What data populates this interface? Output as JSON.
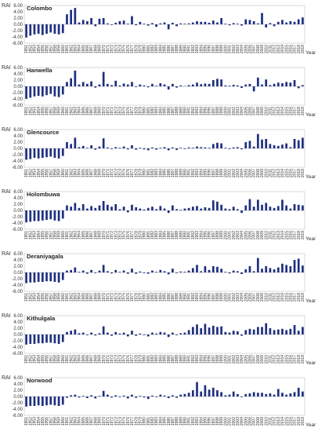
{
  "chart_data": [
    {
      "type": "bar",
      "title": "Colombo",
      "ylabel": "RAI",
      "xlabel": "Year",
      "ylim": [
        -6,
        6
      ],
      "yticks": [
        "6.00",
        "4.00",
        "2.00",
        "0.00",
        "-2.00",
        "-4.00",
        "-6.00"
      ],
      "categories": [
        "1951",
        "1952",
        "1953",
        "1954",
        "1955",
        "1956",
        "1957",
        "1958",
        "1959",
        "1960",
        "1961",
        "1962",
        "1963",
        "1964",
        "1965",
        "1966",
        "1967",
        "1968",
        "1969",
        "1970",
        "1971",
        "1972",
        "1973",
        "1974",
        "1975",
        "1976",
        "1977",
        "1978",
        "1979",
        "1980",
        "1981",
        "1982",
        "1983",
        "1984",
        "1985",
        "1986",
        "1987",
        "1988",
        "1989",
        "1990",
        "1991",
        "1992",
        "1993",
        "1994",
        "1995",
        "1996",
        "1997",
        "1998",
        "1999",
        "2000",
        "2001",
        "2002",
        "2003",
        "2004",
        "2005",
        "2006",
        "2007",
        "2008",
        "2009",
        "2010",
        "2011",
        "2012",
        "2013",
        "2014",
        "2015",
        "2016",
        "2017",
        "2018",
        "2019"
      ],
      "series": [
        {
          "values": [
            -4.2,
            -3.6,
            -3.2,
            -3.0,
            -3.4,
            -3.0,
            -2.6,
            -3.0,
            -3.2,
            -2.8,
            3.2,
            4.6,
            5.2,
            0.6,
            1.4,
            1.0,
            2.0,
            -0.6,
            1.8,
            2.0,
            0.3,
            -0.2,
            0.5,
            1.0,
            1.2,
            0.2,
            2.6,
            -0.3,
            0.8,
            0.2,
            -0.4,
            0.4,
            -0.8,
            0.3,
            0.6,
            -1.6,
            0.5,
            -0.6,
            0.3,
            0.2,
            0.3,
            0.6,
            1.0,
            0.8,
            0.8,
            0.5,
            1.2,
            0.6,
            2.0,
            0.2,
            -0.3,
            0.4,
            0.2,
            -0.4,
            1.6,
            1.4,
            1.0,
            0.3,
            3.6,
            -1.0,
            0.4,
            -0.6,
            0.8,
            1.4,
            0.6,
            1.0,
            0.8,
            1.6,
            2.2
          ]
        }
      ]
    },
    {
      "type": "bar",
      "title": "Hanwella",
      "ylabel": "RAI",
      "xlabel": "Year",
      "ylim": [
        -6,
        6
      ],
      "yticks": [
        "6.00",
        "4.00",
        "2.00",
        "0.00",
        "-2.00",
        "-4.00",
        "-6.00"
      ],
      "categories": [
        "1951",
        "1952",
        "1953",
        "1954",
        "1955",
        "1956",
        "1957",
        "1958",
        "1959",
        "1960",
        "1961",
        "1962",
        "1963",
        "1964",
        "1965",
        "1966",
        "1967",
        "1968",
        "1969",
        "1970",
        "1971",
        "1972",
        "1973",
        "1974",
        "1975",
        "1976",
        "1977",
        "1978",
        "1979",
        "1980",
        "1981",
        "1982",
        "1983",
        "1984",
        "1985",
        "1986",
        "1987",
        "1988",
        "1989",
        "1990",
        "1991",
        "1992",
        "1993",
        "1994",
        "1995",
        "1996",
        "1997",
        "1998",
        "1999",
        "2000",
        "2001",
        "2002",
        "2003",
        "2004",
        "2005",
        "2006",
        "2007",
        "2008",
        "2009",
        "2010",
        "2011",
        "2012",
        "2013",
        "2014",
        "2015",
        "2016",
        "2017",
        "2018",
        "2019"
      ],
      "series": [
        {
          "values": [
            -4.0,
            -3.6,
            -3.2,
            -3.0,
            -3.2,
            -2.8,
            -2.4,
            -3.2,
            -3.4,
            -2.6,
            1.4,
            2.6,
            5.0,
            0.6,
            1.4,
            0.8,
            1.6,
            -0.4,
            0.6,
            4.6,
            0.8,
            0.4,
            1.8,
            0.3,
            0.9,
            0.6,
            1.4,
            -0.2,
            0.6,
            0.3,
            -0.3,
            0.8,
            0.2,
            1.0,
            0.6,
            -1.0,
            0.8,
            -0.4,
            0.3,
            0.1,
            0.4,
            0.6,
            1.2,
            0.7,
            0.9,
            0.8,
            2.0,
            2.4,
            2.2,
            0.3,
            0.2,
            0.5,
            0.3,
            -0.5,
            0.6,
            0.8,
            -1.6,
            2.8,
            0.6,
            2.2,
            0.4,
            0.8,
            1.2,
            1.0,
            1.4,
            1.2,
            2.0,
            -0.6,
            0.4
          ]
        }
      ]
    },
    {
      "type": "bar",
      "title": "Glencource",
      "ylabel": "RAI",
      "xlabel": "Year",
      "ylim": [
        -6,
        6
      ],
      "yticks": [
        "6.00",
        "4.00",
        "2.00",
        "0.00",
        "-2.00",
        "-4.00",
        "-6.00"
      ],
      "categories": [
        "1951",
        "1952",
        "1953",
        "1954",
        "1955",
        "1956",
        "1957",
        "1958",
        "1959",
        "1960",
        "1961",
        "1962",
        "1963",
        "1964",
        "1965",
        "1966",
        "1967",
        "1968",
        "1969",
        "1970",
        "1971",
        "1972",
        "1973",
        "1974",
        "1975",
        "1976",
        "1977",
        "1978",
        "1979",
        "1980",
        "1981",
        "1982",
        "1983",
        "1984",
        "1985",
        "1986",
        "1987",
        "1988",
        "1989",
        "1990",
        "1991",
        "1992",
        "1993",
        "1994",
        "1995",
        "1996",
        "1997",
        "1998",
        "1999",
        "2000",
        "2001",
        "2002",
        "2003",
        "2004",
        "2005",
        "2006",
        "2007",
        "2008",
        "2009",
        "2010",
        "2011",
        "2012",
        "2013",
        "2014",
        "2015",
        "2016",
        "2017",
        "2018",
        "2019"
      ],
      "series": [
        {
          "values": [
            -3.6,
            -3.4,
            -3.0,
            -3.2,
            -3.0,
            -2.8,
            -2.6,
            -3.0,
            -3.2,
            -2.4,
            2.0,
            1.4,
            3.4,
            0.4,
            0.8,
            0.2,
            1.0,
            -0.4,
            0.6,
            3.2,
            0.3,
            -0.2,
            0.4,
            0.2,
            0.6,
            -0.3,
            1.0,
            -0.4,
            0.2,
            -0.3,
            -0.6,
            0.3,
            -0.4,
            0.2,
            0.4,
            -0.6,
            0.3,
            -0.5,
            0.2,
            -0.2,
            0.3,
            0.2,
            0.6,
            0.4,
            0.3,
            0.2,
            1.4,
            1.8,
            1.6,
            0.2,
            -0.2,
            0.3,
            0.4,
            -0.3,
            2.0,
            2.4,
            0.6,
            4.6,
            2.8,
            3.0,
            1.4,
            1.0,
            0.8,
            1.2,
            1.6,
            0.4,
            3.0,
            2.6,
            3.4
          ]
        }
      ]
    },
    {
      "type": "bar",
      "title": "Holombuwa",
      "ylabel": "RAI",
      "xlabel": "Year",
      "ylim": [
        -6,
        6
      ],
      "yticks": [
        "6.00",
        "4.00",
        "2.00",
        "0.00",
        "-2.00",
        "-4.00",
        "-6.00"
      ],
      "categories": [
        "1951",
        "1952",
        "1953",
        "1954",
        "1955",
        "1956",
        "1957",
        "1958",
        "1959",
        "1960",
        "1961",
        "1962",
        "1963",
        "1964",
        "1965",
        "1966",
        "1967",
        "1968",
        "1969",
        "1970",
        "1971",
        "1972",
        "1973",
        "1974",
        "1975",
        "1976",
        "1977",
        "1978",
        "1979",
        "1980",
        "1981",
        "1982",
        "1983",
        "1984",
        "1985",
        "1986",
        "1987",
        "1988",
        "1989",
        "1990",
        "1991",
        "1992",
        "1993",
        "1994",
        "1995",
        "1996",
        "1997",
        "1998",
        "1999",
        "2000",
        "2001",
        "2002",
        "2003",
        "2004",
        "2005",
        "2006",
        "2007",
        "2008",
        "2009",
        "2010",
        "2011",
        "2012",
        "2013",
        "2014",
        "2015",
        "2016",
        "2017",
        "2018",
        "2019"
      ],
      "series": [
        {
          "values": [
            -3.8,
            -3.6,
            -3.4,
            -3.4,
            -3.2,
            -3.0,
            -2.8,
            -3.2,
            -3.4,
            -2.6,
            1.6,
            1.2,
            2.4,
            0.8,
            2.0,
            0.6,
            1.4,
            0.8,
            1.6,
            3.0,
            1.8,
            1.2,
            2.0,
            0.4,
            1.2,
            -0.6,
            1.8,
            1.0,
            0.6,
            0.3,
            0.8,
            1.2,
            0.4,
            1.4,
            0.6,
            -0.8,
            1.6,
            0.4,
            0.2,
            0.6,
            0.8,
            1.2,
            1.4,
            0.6,
            1.0,
            0.8,
            3.2,
            2.8,
            1.8,
            0.6,
            0.4,
            1.2,
            0.4,
            -0.8,
            1.6,
            3.6,
            1.2,
            3.4,
            1.8,
            2.4,
            1.2,
            0.8,
            1.4,
            3.4,
            1.6,
            0.6,
            2.0,
            1.8,
            1.6
          ]
        }
      ]
    },
    {
      "type": "bar",
      "title": "Deraniyagala",
      "ylabel": "RAI",
      "xlabel": "Year",
      "ylim": [
        -6,
        6
      ],
      "yticks": [
        "6.00",
        "4.00",
        "2.00",
        "0.00",
        "-2.00",
        "-4.00",
        "-6.00"
      ],
      "categories": [
        "1951",
        "1952",
        "1953",
        "1954",
        "1955",
        "1956",
        "1957",
        "1958",
        "1959",
        "1960",
        "1961",
        "1962",
        "1963",
        "1964",
        "1965",
        "1966",
        "1967",
        "1968",
        "1969",
        "1970",
        "1971",
        "1972",
        "1973",
        "1974",
        "1975",
        "1976",
        "1977",
        "1978",
        "1979",
        "1980",
        "1981",
        "1982",
        "1983",
        "1984",
        "1985",
        "1986",
        "1987",
        "1988",
        "1989",
        "1990",
        "1991",
        "1992",
        "1993",
        "1994",
        "1995",
        "1996",
        "1997",
        "1998",
        "1999",
        "2000",
        "2001",
        "2002",
        "2003",
        "2004",
        "2005",
        "2006",
        "2007",
        "2008",
        "2009",
        "2010",
        "2011",
        "2012",
        "2013",
        "2014",
        "2015",
        "2016",
        "2017",
        "2018",
        "2019"
      ],
      "series": [
        {
          "values": [
            -3.4,
            -3.2,
            -3.2,
            -3.0,
            -3.0,
            -2.8,
            -2.8,
            -3.0,
            -3.2,
            -2.4,
            0.6,
            0.8,
            1.6,
            0.2,
            0.6,
            -0.4,
            0.8,
            -0.2,
            0.6,
            2.4,
            0.4,
            -0.3,
            0.8,
            0.2,
            0.6,
            -0.4,
            1.2,
            -0.4,
            0.3,
            -0.2,
            -0.4,
            0.6,
            0.2,
            0.8,
            0.4,
            -0.6,
            1.2,
            -0.2,
            0.3,
            0.2,
            0.6,
            1.4,
            2.4,
            0.4,
            2.0,
            0.8,
            2.0,
            1.8,
            1.2,
            0.2,
            -0.3,
            0.6,
            0.4,
            -0.5,
            1.0,
            2.0,
            0.4,
            4.6,
            1.2,
            2.0,
            1.4,
            1.0,
            1.6,
            2.8,
            2.4,
            2.0,
            4.0,
            4.4,
            2.2
          ]
        }
      ]
    },
    {
      "type": "bar",
      "title": "Kithulgala",
      "ylabel": "RAI",
      "xlabel": "Year",
      "ylim": [
        -6,
        6
      ],
      "yticks": [
        "6.00",
        "4.00",
        "2.00",
        "0.00",
        "-2.00",
        "-4.00",
        "-6.00"
      ],
      "categories": [
        "1951",
        "1952",
        "1953",
        "1954",
        "1955",
        "1956",
        "1957",
        "1958",
        "1959",
        "1960",
        "1961",
        "1962",
        "1963",
        "1964",
        "1965",
        "1966",
        "1967",
        "1968",
        "1969",
        "1970",
        "1971",
        "1972",
        "1973",
        "1974",
        "1975",
        "1976",
        "1977",
        "1978",
        "1979",
        "1980",
        "1981",
        "1982",
        "1983",
        "1984",
        "1985",
        "1986",
        "1987",
        "1988",
        "1989",
        "1990",
        "1991",
        "1992",
        "1993",
        "1994",
        "1995",
        "1996",
        "1997",
        "1998",
        "1999",
        "2000",
        "2001",
        "2002",
        "2003",
        "2004",
        "2005",
        "2006",
        "2007",
        "2008",
        "2009",
        "2010",
        "2011",
        "2012",
        "2013",
        "2014",
        "2015",
        "2016",
        "2017",
        "2018",
        "2019"
      ],
      "series": [
        {
          "values": [
            -3.2,
            -3.0,
            -3.0,
            -2.8,
            -2.8,
            -2.6,
            -2.6,
            -2.8,
            -3.0,
            -2.4,
            0.8,
            1.2,
            1.6,
            0.4,
            0.6,
            -0.2,
            0.6,
            -0.3,
            0.4,
            2.6,
            0.6,
            -0.4,
            0.8,
            0.3,
            0.6,
            -0.6,
            1.2,
            -0.4,
            0.3,
            -0.2,
            -0.6,
            0.6,
            0.3,
            0.8,
            0.6,
            -0.8,
            0.6,
            -0.2,
            0.4,
            0.6,
            1.4,
            2.4,
            3.2,
            2.0,
            3.4,
            2.2,
            2.8,
            2.4,
            2.6,
            0.8,
            0.6,
            1.2,
            1.0,
            -0.4,
            1.4,
            1.8,
            1.6,
            2.4,
            2.4,
            3.6,
            2.0,
            1.4,
            1.6,
            1.8,
            1.4,
            1.8,
            3.0,
            1.2,
            2.4
          ]
        }
      ]
    },
    {
      "type": "bar",
      "title": "Norwood",
      "ylabel": "RAI",
      "xlabel": "Year",
      "ylim": [
        -6,
        6
      ],
      "yticks": [
        "6.00",
        "4.00",
        "2.00",
        "0.00",
        "-2.00",
        "-4.00",
        "-6.00"
      ],
      "categories": [
        "1951",
        "1952",
        "1953",
        "1954",
        "1955",
        "1956",
        "1957",
        "1958",
        "1959",
        "1960",
        "1961",
        "1962",
        "1963",
        "1964",
        "1965",
        "1966",
        "1967",
        "1968",
        "1969",
        "1970",
        "1971",
        "1972",
        "1973",
        "1974",
        "1975",
        "1976",
        "1977",
        "1978",
        "1979",
        "1980",
        "1981",
        "1982",
        "1983",
        "1984",
        "1985",
        "1986",
        "1987",
        "1988",
        "1989",
        "1990",
        "1991",
        "1992",
        "1993",
        "1994",
        "1995",
        "1996",
        "1997",
        "1998",
        "1999",
        "2000",
        "2001",
        "2002",
        "2003",
        "2004",
        "2005",
        "2006",
        "2007",
        "2008",
        "2009",
        "2010",
        "2011",
        "2012",
        "2013",
        "2014",
        "2015",
        "2016",
        "2017",
        "2018",
        "2019"
      ],
      "series": [
        {
          "values": [
            -3.2,
            -3.0,
            -3.0,
            -2.8,
            -3.0,
            -2.8,
            -2.6,
            -2.8,
            -3.0,
            -2.6,
            -0.4,
            0.4,
            0.6,
            -0.3,
            0.2,
            -0.5,
            0.4,
            -0.6,
            0.2,
            1.8,
            0.6,
            -0.3,
            0.4,
            -0.2,
            0.3,
            -0.6,
            0.6,
            -0.4,
            0.2,
            -0.3,
            -0.8,
            0.3,
            -0.2,
            0.6,
            0.3,
            -0.5,
            0.4,
            -0.4,
            0.6,
            0.8,
            1.2,
            2.0,
            4.6,
            1.6,
            3.6,
            2.2,
            2.8,
            2.0,
            1.4,
            0.4,
            0.6,
            1.6,
            0.8,
            -0.2,
            0.8,
            1.0,
            1.4,
            1.2,
            1.2,
            0.8,
            1.0,
            0.6,
            2.4,
            1.2,
            0.6,
            1.0,
            1.4,
            2.8,
            1.6
          ]
        }
      ]
    }
  ]
}
